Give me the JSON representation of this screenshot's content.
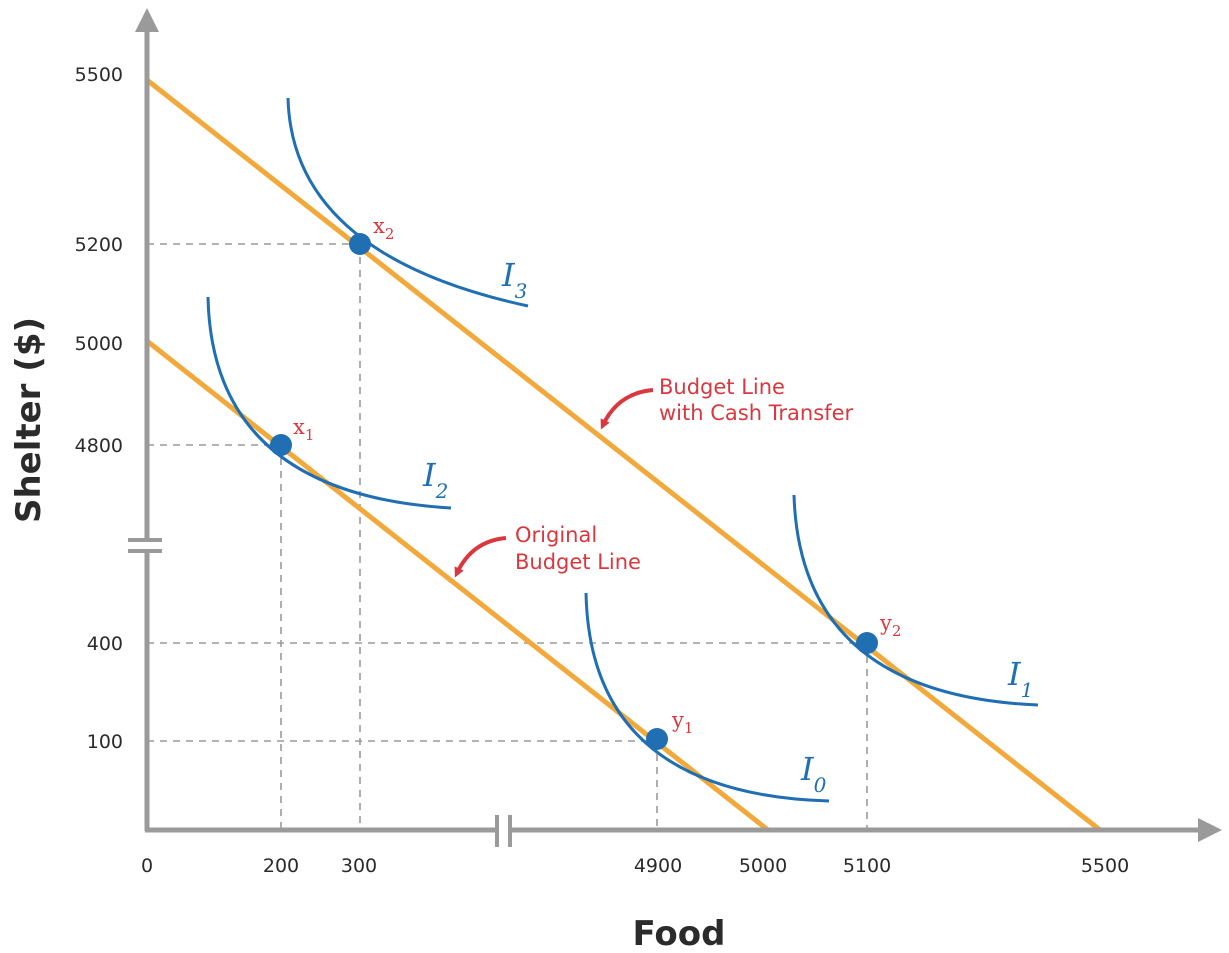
{
  "axes": {
    "x_title": "Food",
    "y_title": "Shelter ($)",
    "x_ticks": [
      "0",
      "200",
      "300",
      "4900",
      "5000",
      "5100",
      "5500"
    ],
    "y_ticks": [
      "5500",
      "5200",
      "5000",
      "4800",
      "400",
      "100"
    ]
  },
  "points": {
    "x2": {
      "main": "x",
      "sub": "2"
    },
    "x1": {
      "main": "x",
      "sub": "1"
    },
    "y1": {
      "main": "y",
      "sub": "1"
    },
    "y2": {
      "main": "y",
      "sub": "2"
    }
  },
  "curves": {
    "i3": {
      "main": "I",
      "sub": "3"
    },
    "i2": {
      "main": "I",
      "sub": "2"
    },
    "i1": {
      "main": "I",
      "sub": "1"
    },
    "i0": {
      "main": "I",
      "sub": "0"
    }
  },
  "annotations": {
    "cash_line1": "Budget Line",
    "cash_line2": "with Cash Transfer",
    "orig_line1": "Original",
    "orig_line2": "Budget Line"
  },
  "colors": {
    "axis": "#9a9a9a",
    "budget_line": "#f2a93b",
    "indifference_curve": "#1f6fb2",
    "point": "#1f6fb2",
    "annotation": "#d9383f",
    "guide": "#9a9a9a"
  },
  "chart_data": {
    "type": "diagram",
    "budget_lines": [
      {
        "name": "Original Budget Line",
        "food_intercept": 5000,
        "shelter_intercept": 5000
      },
      {
        "name": "Budget Line with Cash Transfer",
        "food_intercept": 5500,
        "shelter_intercept": 5500
      }
    ],
    "points": [
      {
        "label": "x1",
        "food": 200,
        "shelter": 4800
      },
      {
        "label": "x2",
        "food": 300,
        "shelter": 5200
      },
      {
        "label": "y1",
        "food": 4900,
        "shelter": 100
      },
      {
        "label": "y2",
        "food": 5100,
        "shelter": 400
      }
    ],
    "indifference_curves": [
      "I0",
      "I1",
      "I2",
      "I3"
    ],
    "x_axis_break": true,
    "y_axis_break": true
  }
}
